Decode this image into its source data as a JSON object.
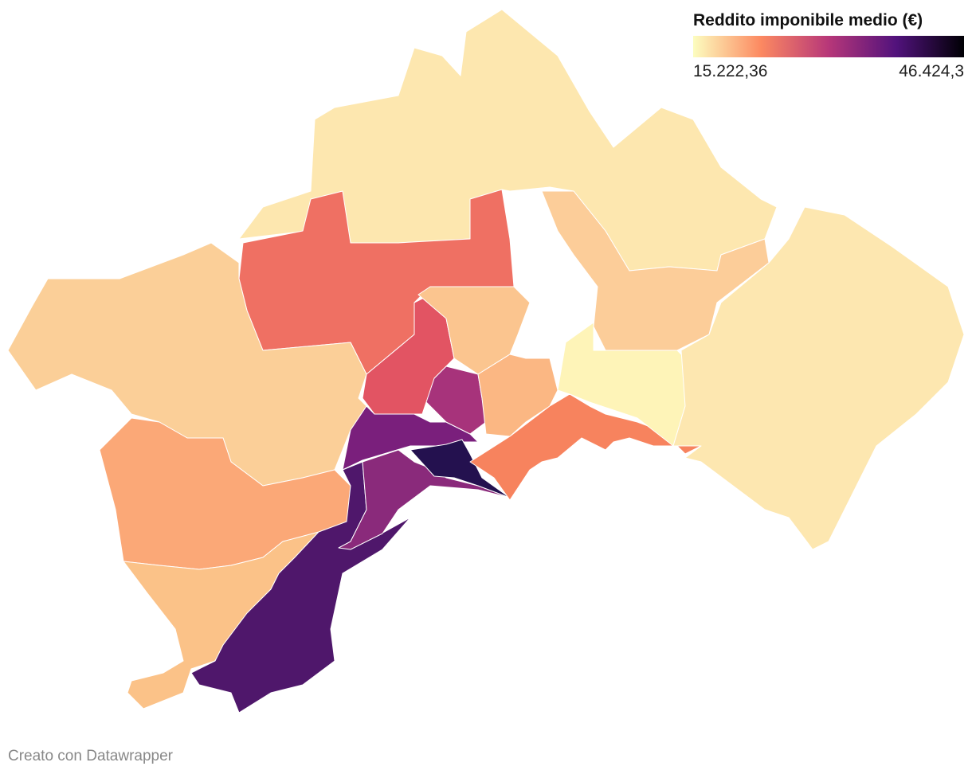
{
  "legend": {
    "title": "Reddito imponibile medio (€)",
    "min": {
      "value": 15222.36,
      "label": "15.222,36"
    },
    "max": {
      "value": 46424.3,
      "label": "46.424,3"
    },
    "colors": [
      "#fcfdbf",
      "#fc8961",
      "#b73779",
      "#51127c",
      "#000004"
    ]
  },
  "footer": "Creato con Datawrapper"
}
